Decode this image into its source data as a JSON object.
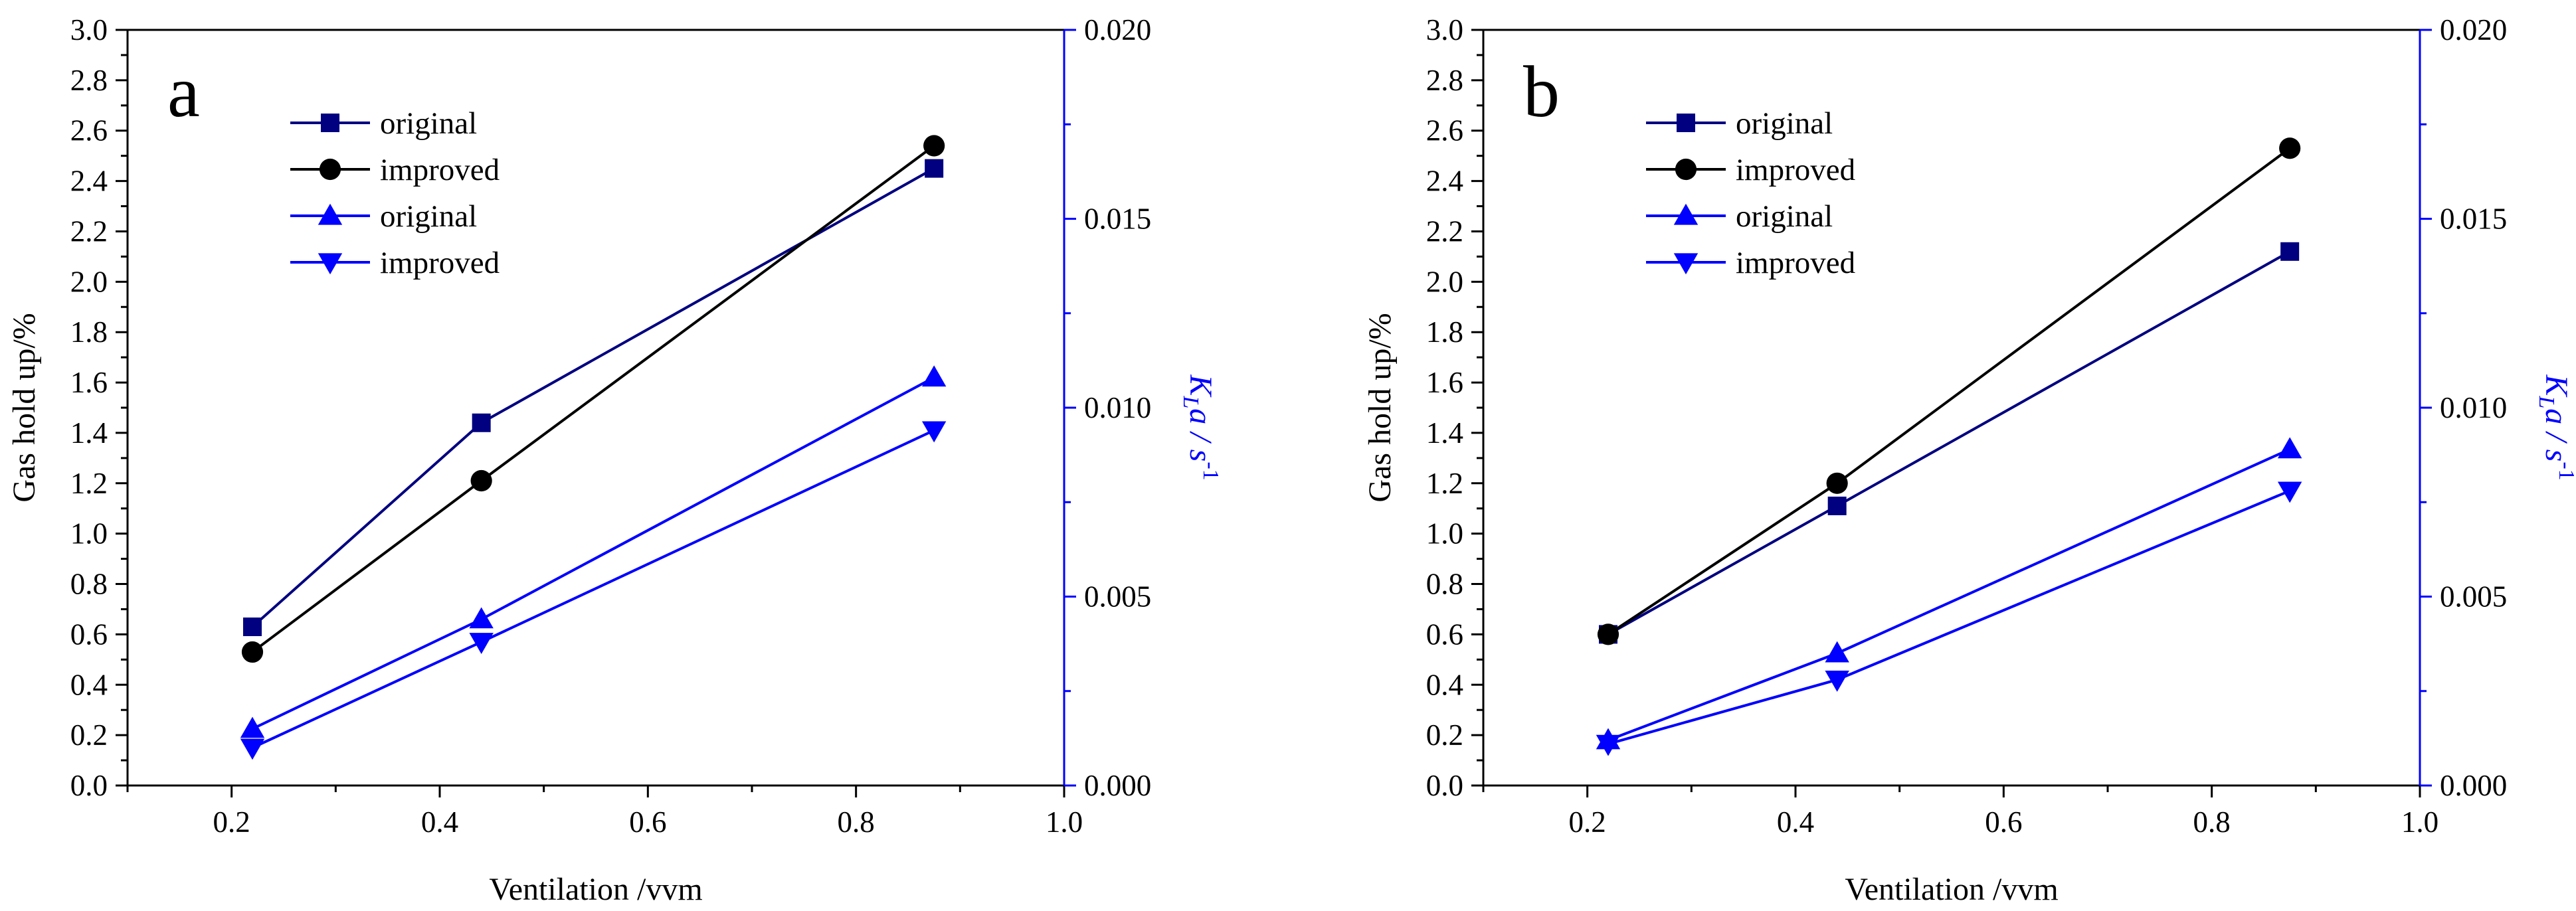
{
  "chart_data": [
    {
      "type": "line",
      "panel_label": "a",
      "xlabel": "Ventilation /vvm",
      "ylabel": "Gas hold up/%",
      "y2label": {
        "main": "K",
        "sub": "L",
        "rest": "a  /  s",
        "sup": "-1"
      },
      "xlim": [
        0.1,
        1.0
      ],
      "ylim": [
        0.0,
        3.0
      ],
      "y2lim": [
        0.0,
        0.02
      ],
      "x_ticks": [
        "0.2",
        "0.4",
        "0.6",
        "0.8",
        "1.0"
      ],
      "y_ticks": [
        "0.0",
        "0.2",
        "0.4",
        "0.6",
        "0.8",
        "1.0",
        "1.2",
        "1.4",
        "1.6",
        "1.8",
        "2.0",
        "2.2",
        "2.4",
        "2.6",
        "2.8",
        "3.0"
      ],
      "y2_ticks": [
        "0.000",
        "0.005",
        "0.010",
        "0.015",
        "0.020"
      ],
      "x": [
        0.22,
        0.44,
        0.875
      ],
      "series": [
        {
          "name": "original",
          "axis": "left",
          "marker": "square",
          "color": "#000080",
          "values": [
            0.63,
            1.44,
            2.45
          ]
        },
        {
          "name": "improved",
          "axis": "left",
          "marker": "circle",
          "color": "#000000",
          "values": [
            0.53,
            1.21,
            2.54
          ]
        },
        {
          "name": "original",
          "axis": "right",
          "marker": "triangle-up",
          "color": "#0000ff",
          "values": [
            0.0015,
            0.0044,
            0.0108
          ]
        },
        {
          "name": "improved",
          "axis": "right",
          "marker": "triangle-down",
          "color": "#0000ff",
          "values": [
            0.001,
            0.0038,
            0.0094
          ]
        }
      ]
    },
    {
      "type": "line",
      "panel_label": "b",
      "xlabel": "Ventilation /vvm",
      "ylabel": "Gas hold up/%",
      "y2label": {
        "main": "K",
        "sub": "L",
        "rest": "a  /  s",
        "sup": "-1"
      },
      "xlim": [
        0.1,
        1.0
      ],
      "ylim": [
        0.0,
        3.0
      ],
      "y2lim": [
        0.0,
        0.02
      ],
      "x_ticks": [
        "0.2",
        "0.4",
        "0.6",
        "0.8",
        "1.0"
      ],
      "y_ticks": [
        "0.0",
        "0.2",
        "0.4",
        "0.6",
        "0.8",
        "1.0",
        "1.2",
        "1.4",
        "1.6",
        "1.8",
        "2.0",
        "2.2",
        "2.4",
        "2.6",
        "2.8",
        "3.0"
      ],
      "y2_ticks": [
        "0.000",
        "0.005",
        "0.010",
        "0.015",
        "0.020"
      ],
      "x": [
        0.22,
        0.44,
        0.875
      ],
      "series": [
        {
          "name": "original",
          "axis": "left",
          "marker": "square",
          "color": "#000080",
          "values": [
            0.6,
            1.11,
            2.12
          ]
        },
        {
          "name": "improved",
          "axis": "left",
          "marker": "circle",
          "color": "#000000",
          "values": [
            0.6,
            1.2,
            2.53
          ]
        },
        {
          "name": "original",
          "axis": "right",
          "marker": "triangle-up",
          "color": "#0000ff",
          "values": [
            0.0012,
            0.0035,
            0.0089
          ]
        },
        {
          "name": "improved",
          "axis": "right",
          "marker": "triangle-down",
          "color": "#0000ff",
          "values": [
            0.0011,
            0.0028,
            0.0078
          ]
        }
      ]
    }
  ]
}
